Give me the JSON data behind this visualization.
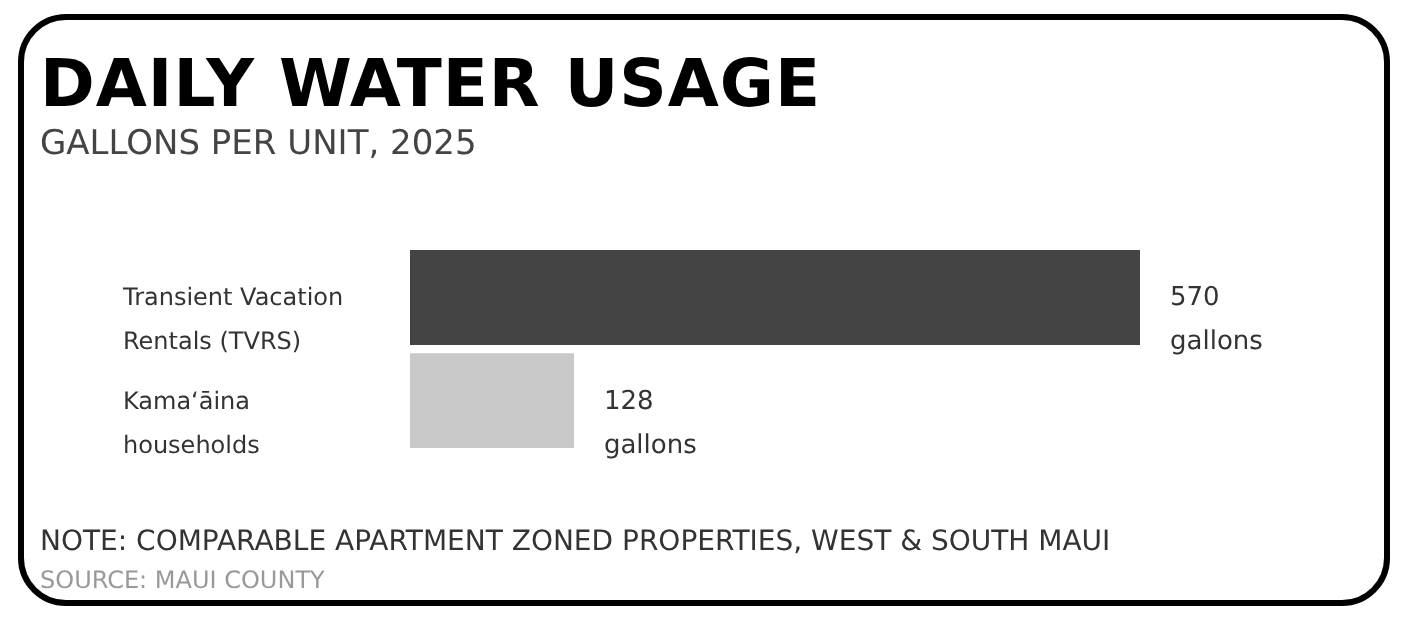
{
  "chart_data": {
    "type": "bar",
    "orientation": "horizontal",
    "title": "DAILY WATER USAGE",
    "subtitle": "GALLONS PER UNIT, 2025",
    "categories": [
      "Transient Vacation Rentals (TVRS)",
      "Kamaʻāina households"
    ],
    "values": [
      570,
      128
    ],
    "colors": [
      "#444444",
      "#c8c8c8"
    ],
    "value_labels": [
      "570 gallons",
      "128 gallons"
    ],
    "annotations": [
      "NOTE: COMPARABLE APARTMENT ZONED PROPERTIES, WEST & SOUTH MAUI",
      "SOURCE: MAUI COUNTY"
    ]
  }
}
